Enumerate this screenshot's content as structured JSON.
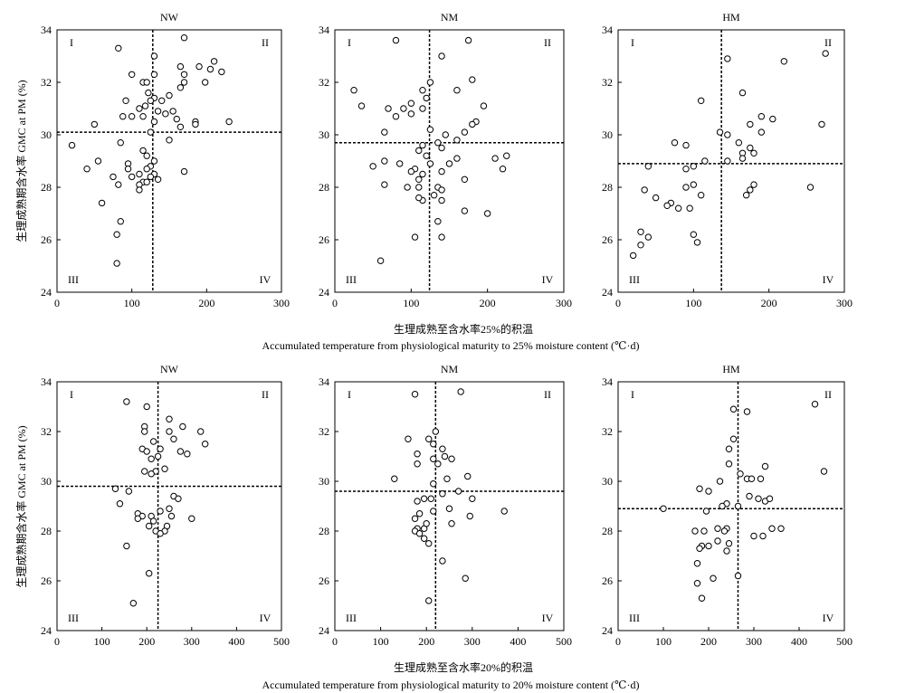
{
  "rows": [
    {
      "xlabel_cn": "生理成熟至含水率25%的积温",
      "xlabel_en": "Accumulated temperature from physiological maturity to 25% moisture content (℃·d)"
    },
    {
      "xlabel_cn": "生理成熟至含水率20%的积温",
      "xlabel_en": "Accumulated temperature from physiological maturity to 20% moisture content (℃·d)"
    }
  ],
  "ylabel": "生理成熟期含水率 GMC at PM (%)",
  "quadrant_labels": [
    "I",
    "II",
    "III",
    "IV"
  ],
  "chart_data": [
    {
      "type": "scatter",
      "title": "NW",
      "xlim": [
        0,
        300
      ],
      "ylim": [
        24,
        34
      ],
      "xticks": [
        "0",
        "100",
        "200",
        "300"
      ],
      "yticks": [
        "24",
        "26",
        "28",
        "30",
        "32",
        "34"
      ],
      "vline": 128,
      "hline": 30.1,
      "points": [
        [
          170,
          33.7
        ],
        [
          82,
          33.3
        ],
        [
          130,
          33
        ],
        [
          210,
          32.8
        ],
        [
          165,
          32.6
        ],
        [
          190,
          32.6
        ],
        [
          205,
          32.5
        ],
        [
          220,
          32.4
        ],
        [
          100,
          32.3
        ],
        [
          130,
          32.3
        ],
        [
          170,
          32.3
        ],
        [
          115,
          32
        ],
        [
          120,
          32
        ],
        [
          170,
          32
        ],
        [
          198,
          32
        ],
        [
          165,
          31.8
        ],
        [
          122,
          31.6
        ],
        [
          150,
          31.5
        ],
        [
          130,
          31.4
        ],
        [
          125,
          31.3
        ],
        [
          140,
          31.3
        ],
        [
          92,
          31.3
        ],
        [
          118,
          31.1
        ],
        [
          110,
          31
        ],
        [
          155,
          30.9
        ],
        [
          145,
          30.8
        ],
        [
          135,
          30.9
        ],
        [
          88,
          30.7
        ],
        [
          115,
          30.7
        ],
        [
          100,
          30.7
        ],
        [
          160,
          30.6
        ],
        [
          130,
          30.5
        ],
        [
          230,
          30.5
        ],
        [
          50,
          30.4
        ],
        [
          185,
          30.5
        ],
        [
          185,
          30.4
        ],
        [
          165,
          30.3
        ],
        [
          125,
          30.1
        ],
        [
          20,
          29.6
        ],
        [
          150,
          29.8
        ],
        [
          85,
          29.7
        ],
        [
          115,
          29.4
        ],
        [
          120,
          29.2
        ],
        [
          130,
          29
        ],
        [
          55,
          29
        ],
        [
          95,
          28.9
        ],
        [
          125,
          28.8
        ],
        [
          95,
          28.7
        ],
        [
          40,
          28.7
        ],
        [
          120,
          28.7
        ],
        [
          130,
          28.5
        ],
        [
          110,
          28.5
        ],
        [
          170,
          28.6
        ],
        [
          75,
          28.4
        ],
        [
          125,
          28.4
        ],
        [
          100,
          28.4
        ],
        [
          135,
          28.3
        ],
        [
          115,
          28.2
        ],
        [
          120,
          28.2
        ],
        [
          110,
          28.1
        ],
        [
          82,
          28.1
        ],
        [
          110,
          27.9
        ],
        [
          60,
          27.4
        ],
        [
          85,
          26.7
        ],
        [
          80,
          26.2
        ],
        [
          80,
          25.1
        ]
      ]
    },
    {
      "type": "scatter",
      "title": "NM",
      "xlim": [
        0,
        300
      ],
      "ylim": [
        24,
        34
      ],
      "xticks": [
        "0",
        "100",
        "200",
        "300"
      ],
      "yticks": [
        "24",
        "26",
        "28",
        "30",
        "32",
        "34"
      ],
      "vline": 124,
      "hline": 29.7,
      "points": [
        [
          80,
          33.6
        ],
        [
          175,
          33.6
        ],
        [
          140,
          33
        ],
        [
          180,
          32.1
        ],
        [
          125,
          32
        ],
        [
          25,
          31.7
        ],
        [
          115,
          31.7
        ],
        [
          160,
          31.7
        ],
        [
          120,
          31.4
        ],
        [
          100,
          31.2
        ],
        [
          195,
          31.1
        ],
        [
          35,
          31.1
        ],
        [
          70,
          31
        ],
        [
          90,
          31
        ],
        [
          115,
          31
        ],
        [
          100,
          30.8
        ],
        [
          80,
          30.7
        ],
        [
          185,
          30.5
        ],
        [
          180,
          30.4
        ],
        [
          125,
          30.2
        ],
        [
          65,
          30.1
        ],
        [
          170,
          30.1
        ],
        [
          145,
          30
        ],
        [
          160,
          29.8
        ],
        [
          135,
          29.7
        ],
        [
          115,
          29.6
        ],
        [
          140,
          29.5
        ],
        [
          110,
          29.4
        ],
        [
          120,
          29.2
        ],
        [
          210,
          29.1
        ],
        [
          65,
          29
        ],
        [
          85,
          28.9
        ],
        [
          125,
          28.9
        ],
        [
          225,
          29.2
        ],
        [
          160,
          29.1
        ],
        [
          150,
          28.9
        ],
        [
          105,
          28.7
        ],
        [
          50,
          28.8
        ],
        [
          220,
          28.7
        ],
        [
          100,
          28.6
        ],
        [
          115,
          28.5
        ],
        [
          140,
          28.6
        ],
        [
          110,
          28.3
        ],
        [
          170,
          28.3
        ],
        [
          65,
          28.1
        ],
        [
          95,
          28
        ],
        [
          110,
          28
        ],
        [
          135,
          28
        ],
        [
          140,
          27.9
        ],
        [
          130,
          27.7
        ],
        [
          115,
          27.5
        ],
        [
          110,
          27.6
        ],
        [
          140,
          27.5
        ],
        [
          170,
          27.1
        ],
        [
          200,
          27
        ],
        [
          135,
          26.7
        ],
        [
          105,
          26.1
        ],
        [
          140,
          26.1
        ],
        [
          60,
          25.2
        ]
      ]
    },
    {
      "type": "scatter",
      "title": "HM",
      "xlim": [
        0,
        300
      ],
      "ylim": [
        24,
        34
      ],
      "xticks": [
        "0",
        "100",
        "200",
        "300"
      ],
      "yticks": [
        "24",
        "26",
        "28",
        "30",
        "32",
        "34"
      ],
      "vline": 137,
      "hline": 28.9,
      "points": [
        [
          275,
          33.1
        ],
        [
          145,
          32.9
        ],
        [
          220,
          32.8
        ],
        [
          165,
          31.6
        ],
        [
          110,
          31.3
        ],
        [
          190,
          30.7
        ],
        [
          205,
          30.6
        ],
        [
          270,
          30.4
        ],
        [
          175,
          30.4
        ],
        [
          135,
          30.1
        ],
        [
          190,
          30.1
        ],
        [
          145,
          30
        ],
        [
          75,
          29.7
        ],
        [
          160,
          29.7
        ],
        [
          90,
          29.6
        ],
        [
          175,
          29.5
        ],
        [
          165,
          29.3
        ],
        [
          180,
          29.3
        ],
        [
          165,
          29.1
        ],
        [
          115,
          29
        ],
        [
          145,
          29
        ],
        [
          90,
          28.7
        ],
        [
          100,
          28.8
        ],
        [
          40,
          28.8
        ],
        [
          100,
          28.1
        ],
        [
          180,
          28.1
        ],
        [
          175,
          27.9
        ],
        [
          90,
          28
        ],
        [
          35,
          27.9
        ],
        [
          255,
          28
        ],
        [
          170,
          27.7
        ],
        [
          110,
          27.7
        ],
        [
          50,
          27.6
        ],
        [
          70,
          27.4
        ],
        [
          65,
          27.3
        ],
        [
          95,
          27.2
        ],
        [
          80,
          27.2
        ],
        [
          30,
          26.3
        ],
        [
          100,
          26.2
        ],
        [
          40,
          26.1
        ],
        [
          30,
          25.8
        ],
        [
          20,
          25.4
        ],
        [
          105,
          25.9
        ]
      ]
    },
    {
      "type": "scatter",
      "title": "NW",
      "xlim": [
        0,
        500
      ],
      "ylim": [
        24,
        34
      ],
      "xticks": [
        "0",
        "100",
        "200",
        "300",
        "400",
        "500"
      ],
      "yticks": [
        "24",
        "26",
        "28",
        "30",
        "32",
        "34"
      ],
      "vline": 225,
      "hline": 29.8,
      "points": [
        [
          155,
          33.2
        ],
        [
          200,
          33
        ],
        [
          250,
          32.5
        ],
        [
          195,
          32.2
        ],
        [
          280,
          32.2
        ],
        [
          195,
          32
        ],
        [
          250,
          32
        ],
        [
          320,
          32
        ],
        [
          260,
          31.7
        ],
        [
          215,
          31.6
        ],
        [
          330,
          31.5
        ],
        [
          190,
          31.3
        ],
        [
          230,
          31.3
        ],
        [
          275,
          31.2
        ],
        [
          200,
          31.2
        ],
        [
          290,
          31.1
        ],
        [
          225,
          31
        ],
        [
          210,
          30.9
        ],
        [
          240,
          30.5
        ],
        [
          220,
          30.4
        ],
        [
          195,
          30.4
        ],
        [
          210,
          30.3
        ],
        [
          130,
          29.7
        ],
        [
          160,
          29.6
        ],
        [
          260,
          29.4
        ],
        [
          270,
          29.3
        ],
        [
          140,
          29.1
        ],
        [
          250,
          28.9
        ],
        [
          180,
          28.7
        ],
        [
          230,
          28.8
        ],
        [
          190,
          28.6
        ],
        [
          210,
          28.6
        ],
        [
          255,
          28.6
        ],
        [
          300,
          28.5
        ],
        [
          215,
          28.4
        ],
        [
          180,
          28.5
        ],
        [
          205,
          28.2
        ],
        [
          245,
          28.2
        ],
        [
          220,
          28
        ],
        [
          240,
          28
        ],
        [
          230,
          27.9
        ],
        [
          155,
          27.4
        ],
        [
          205,
          26.3
        ],
        [
          170,
          25.1
        ]
      ]
    },
    {
      "type": "scatter",
      "title": "NM",
      "xlim": [
        0,
        500
      ],
      "ylim": [
        24,
        34
      ],
      "xticks": [
        "0",
        "100",
        "200",
        "300",
        "400",
        "500"
      ],
      "yticks": [
        "24",
        "26",
        "28",
        "30",
        "32",
        "34"
      ],
      "vline": 220,
      "hline": 29.6,
      "points": [
        [
          175,
          33.5
        ],
        [
          275,
          33.6
        ],
        [
          220,
          32
        ],
        [
          205,
          31.7
        ],
        [
          215,
          31.5
        ],
        [
          160,
          31.7
        ],
        [
          235,
          31.3
        ],
        [
          180,
          31.1
        ],
        [
          240,
          31
        ],
        [
          255,
          30.9
        ],
        [
          215,
          30.9
        ],
        [
          225,
          30.7
        ],
        [
          180,
          30.7
        ],
        [
          290,
          30.2
        ],
        [
          130,
          30.1
        ],
        [
          245,
          30.1
        ],
        [
          215,
          29.9
        ],
        [
          300,
          29.3
        ],
        [
          270,
          29.6
        ],
        [
          235,
          29.5
        ],
        [
          180,
          29.2
        ],
        [
          195,
          29.3
        ],
        [
          210,
          29.3
        ],
        [
          250,
          28.9
        ],
        [
          370,
          28.8
        ],
        [
          215,
          28.8
        ],
        [
          295,
          28.6
        ],
        [
          185,
          28.7
        ],
        [
          175,
          28.5
        ],
        [
          255,
          28.3
        ],
        [
          195,
          28.1
        ],
        [
          180,
          28.1
        ],
        [
          175,
          28
        ],
        [
          185,
          27.9
        ],
        [
          200,
          28.3
        ],
        [
          195,
          27.7
        ],
        [
          205,
          27.5
        ],
        [
          235,
          26.8
        ],
        [
          285,
          26.1
        ],
        [
          205,
          25.2
        ]
      ]
    },
    {
      "type": "scatter",
      "title": "HM",
      "xlim": [
        0,
        500
      ],
      "ylim": [
        24,
        34
      ],
      "xticks": [
        "0",
        "100",
        "200",
        "300",
        "400",
        "500"
      ],
      "yticks": [
        "24",
        "26",
        "28",
        "30",
        "32",
        "34"
      ],
      "vline": 265,
      "hline": 28.9,
      "points": [
        [
          435,
          33.1
        ],
        [
          255,
          32.9
        ],
        [
          285,
          32.8
        ],
        [
          255,
          31.7
        ],
        [
          245,
          31.3
        ],
        [
          245,
          30.7
        ],
        [
          325,
          30.6
        ],
        [
          455,
          30.4
        ],
        [
          270,
          30.3
        ],
        [
          285,
          30.1
        ],
        [
          295,
          30.1
        ],
        [
          315,
          30.1
        ],
        [
          225,
          30
        ],
        [
          180,
          29.7
        ],
        [
          200,
          29.6
        ],
        [
          290,
          29.4
        ],
        [
          310,
          29.3
        ],
        [
          325,
          29.2
        ],
        [
          335,
          29.3
        ],
        [
          240,
          29.1
        ],
        [
          230,
          29
        ],
        [
          100,
          28.9
        ],
        [
          265,
          29
        ],
        [
          195,
          28.8
        ],
        [
          240,
          28.1
        ],
        [
          220,
          28.1
        ],
        [
          235,
          28
        ],
        [
          170,
          28
        ],
        [
          190,
          28
        ],
        [
          340,
          28.1
        ],
        [
          360,
          28.1
        ],
        [
          300,
          27.8
        ],
        [
          320,
          27.8
        ],
        [
          220,
          27.6
        ],
        [
          185,
          27.4
        ],
        [
          200,
          27.4
        ],
        [
          245,
          27.5
        ],
        [
          240,
          27.2
        ],
        [
          180,
          27.3
        ],
        [
          175,
          26.7
        ],
        [
          210,
          26.1
        ],
        [
          265,
          26.2
        ],
        [
          175,
          25.9
        ],
        [
          185,
          25.3
        ]
      ]
    }
  ]
}
